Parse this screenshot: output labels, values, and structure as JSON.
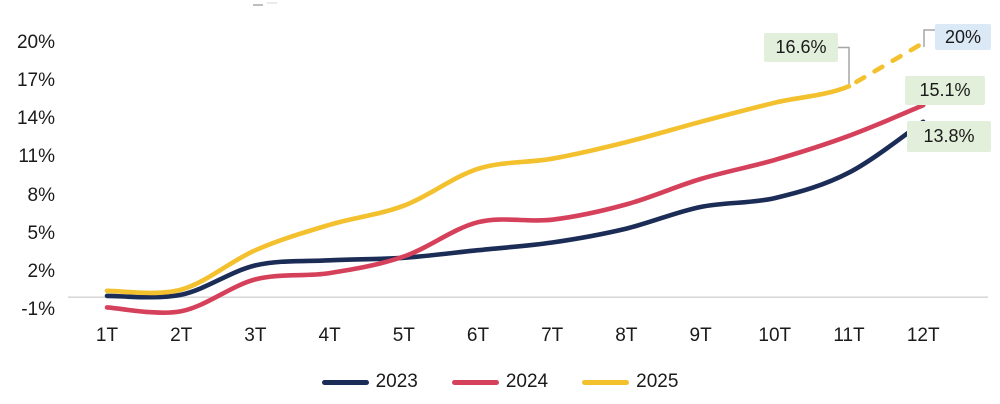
{
  "canvas": {
    "background": "#FFFFFF",
    "zero_line_color": "#D9D9D9",
    "connector_color": "#A6A6A6",
    "text_color": "#1A1A1A"
  },
  "chart_data": {
    "type": "line",
    "title": "",
    "categories": [
      "1T",
      "2T",
      "3T",
      "4T",
      "5T",
      "6T",
      "7T",
      "8T",
      "9T",
      "10T",
      "11T",
      "12T"
    ],
    "series": [
      {
        "name": "2023",
        "color": "#1B2D56",
        "style": "solid",
        "values": [
          0.1,
          0.2,
          2.5,
          2.9,
          3.1,
          3.7,
          4.3,
          5.4,
          7.1,
          7.8,
          9.8,
          13.8
        ]
      },
      {
        "name": "2024",
        "color": "#D5415B",
        "style": "solid",
        "values": [
          -0.8,
          -1.1,
          1.4,
          1.9,
          3.2,
          5.9,
          6.1,
          7.3,
          9.3,
          10.8,
          12.7,
          15.1
        ]
      },
      {
        "name": "2025",
        "color": "#F3C02E",
        "style": "solid_then_dashed",
        "dashed_from_index": 10,
        "values": [
          0.5,
          0.6,
          3.7,
          5.7,
          7.2,
          10.1,
          10.9,
          12.2,
          13.8,
          15.3,
          16.6,
          20.0
        ]
      }
    ],
    "ylim": [
      -1,
      20
    ],
    "yticks": [
      {
        "label": "20%",
        "value": 20
      },
      {
        "label": "17%",
        "value": 17
      },
      {
        "label": "14%",
        "value": 14
      },
      {
        "label": "11%",
        "value": 11
      },
      {
        "label": "8%",
        "value": 8
      },
      {
        "label": "5%",
        "value": 5
      },
      {
        "label": "2%",
        "value": 2
      },
      {
        "label": "-1%",
        "value": -1
      }
    ],
    "grid": "horizontal-zero-line-only",
    "legend_position": "bottom",
    "annotations": [
      {
        "text": "16.6%",
        "series": "2025",
        "category": "11T",
        "bg": "#E2EFDA",
        "has_connector": true
      },
      {
        "text": "20%",
        "series": "2025",
        "category": "12T",
        "bg": "#DBE8F5",
        "has_connector": true
      },
      {
        "text": "15.1%",
        "series": "2024",
        "category": "12T",
        "bg": "#E2EFDA",
        "has_connector": false
      },
      {
        "text": "13.8%",
        "series": "2023",
        "category": "12T",
        "bg": "#E2EFDA",
        "has_connector": false
      }
    ]
  }
}
